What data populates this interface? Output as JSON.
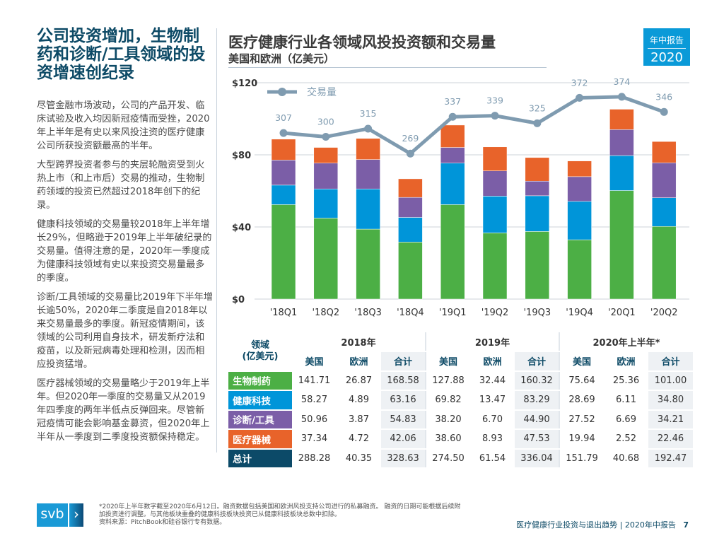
{
  "left": {
    "heading": "公司投资增加，生物制药和诊断/工具领域的投资增速创纪录",
    "paragraphs": [
      "尽管金融市场波动，公司的产品开发、临床试验及收入均因新冠疫情而受挫，2020年上半年是有史以来风投注资的医疗健康公司所获投资额最高的半年。",
      "大型跨界投资者参与的夹层轮融资受到火热上市（和上市后）交易的推动，生物制药领域的投资已然超过2018年创下的纪录。",
      "健康科技领域的交易量较2018年上半年增长29%，但略逊于2019年上半年破纪录的交易量。值得注意的是，2020年一季度成为健康科技领域有史以来投资交易量最多的季度。",
      "诊断/工具领域的交易量比2019年下半年增长逾50%，2020年二季度是自2018年以来交易量最多的季度。新冠疫情期间，该领域的公司利用自身技术，研发新疗法和疫苗，以及新冠病毒处理和检测，因而相应投资猛增。",
      "医疗器械领域的交易量略少于2019年上半年。但2020年一季度的交易量又从2019年四季度的两年半低点反弹回来。尽管新冠疫情可能会影响基金募资，但2020年上半年从一季度到二季度投资额保持稳定。"
    ]
  },
  "badge": {
    "line1": "年中报告",
    "line2": "2020"
  },
  "chart_data": {
    "type": "bar",
    "title": "医疗健康行业各领域风投投资额和交易量",
    "subtitle": "美国和欧洲（亿美元）",
    "categories": [
      "'18Q1",
      "'18Q2",
      "'18Q3",
      "'18Q4",
      "'19Q1",
      "'19Q2",
      "'19Q3",
      "'19Q4",
      "'20Q1",
      "'20Q2"
    ],
    "yticks": [
      "$0",
      "$40",
      "$80",
      "$120"
    ],
    "ylim": [
      0,
      120
    ],
    "stacked": true,
    "series": [
      {
        "key": "生物制药",
        "color": "#4caf45",
        "values": [
          52.4,
          44.9,
          38.8,
          31.6,
          52.4,
          36.7,
          37.5,
          32.9,
          60.2,
          40.3
        ]
      },
      {
        "key": "健康科技",
        "color": "#0095d9",
        "values": [
          10.8,
          16.2,
          22.3,
          13.7,
          23.0,
          20.4,
          19.8,
          21.3,
          19.4,
          15.9
        ]
      },
      {
        "key": "诊断/工具",
        "color": "#7b5ea7",
        "values": [
          13.9,
          14.3,
          16.3,
          11.1,
          8.7,
          14.0,
          8.1,
          13.7,
          14.4,
          19.4
        ]
      },
      {
        "key": "医疗器械",
        "color": "#e8632a",
        "values": [
          11.6,
          8.7,
          11.7,
          10.3,
          12.4,
          13.3,
          13.1,
          8.7,
          11.3,
          11.8
        ]
      }
    ],
    "line": {
      "name": "交易量",
      "color": "#7f9bb0",
      "values": [
        307,
        300,
        315,
        269,
        337,
        339,
        325,
        372,
        374,
        346
      ],
      "secondary_ylim": [
        0,
        400
      ]
    },
    "grid": true,
    "legend": "top-left"
  },
  "table": {
    "corner": [
      "领域",
      "(亿美元)"
    ],
    "years": [
      "2018年",
      "2019年",
      "2020年上半年*"
    ],
    "subheads": [
      "美国",
      "欧洲",
      "合计"
    ],
    "rows": [
      {
        "label": "生物制药",
        "color": "#4caf45",
        "cells": [
          "141.71",
          "26.87",
          "168.58",
          "127.88",
          "32.44",
          "160.32",
          "75.64",
          "25.36",
          "101.00"
        ]
      },
      {
        "label": "健康科技",
        "color": "#0095d9",
        "cells": [
          "58.27",
          "4.89",
          "63.16",
          "69.82",
          "13.47",
          "83.29",
          "28.69",
          "6.11",
          "34.80"
        ]
      },
      {
        "label": "诊断/工具",
        "color": "#7b5ea7",
        "cells": [
          "50.96",
          "3.87",
          "54.83",
          "38.20",
          "6.70",
          "44.90",
          "27.52",
          "6.69",
          "34.21"
        ]
      },
      {
        "label": "医疗器械",
        "color": "#e8632a",
        "cells": [
          "37.34",
          "4.72",
          "42.06",
          "38.60",
          "8.93",
          "47.53",
          "19.94",
          "2.52",
          "22.46"
        ]
      },
      {
        "label": "总计",
        "color": "#0c4a68",
        "cells": [
          "288.28",
          "40.35",
          "328.63",
          "274.50",
          "61.54",
          "336.04",
          "151.79",
          "40.68",
          "192.47"
        ]
      }
    ]
  },
  "footer": {
    "logo": "svb",
    "footnote": [
      "*2020年上半年数字截至2020年6月12日。融资数据包括美国和欧洲风投支持公司进行的私募融资。 融资的日期可能根据后续附加投资进行调整。与其他板块重叠的健康科技板块投资已从健康科技板块总数中扣除。",
      "资料来源：PitchBook和硅谷银行专有数据。"
    ],
    "right": "医疗健康行业投资与退出趋势 | 2020年中报告",
    "page": "7"
  }
}
